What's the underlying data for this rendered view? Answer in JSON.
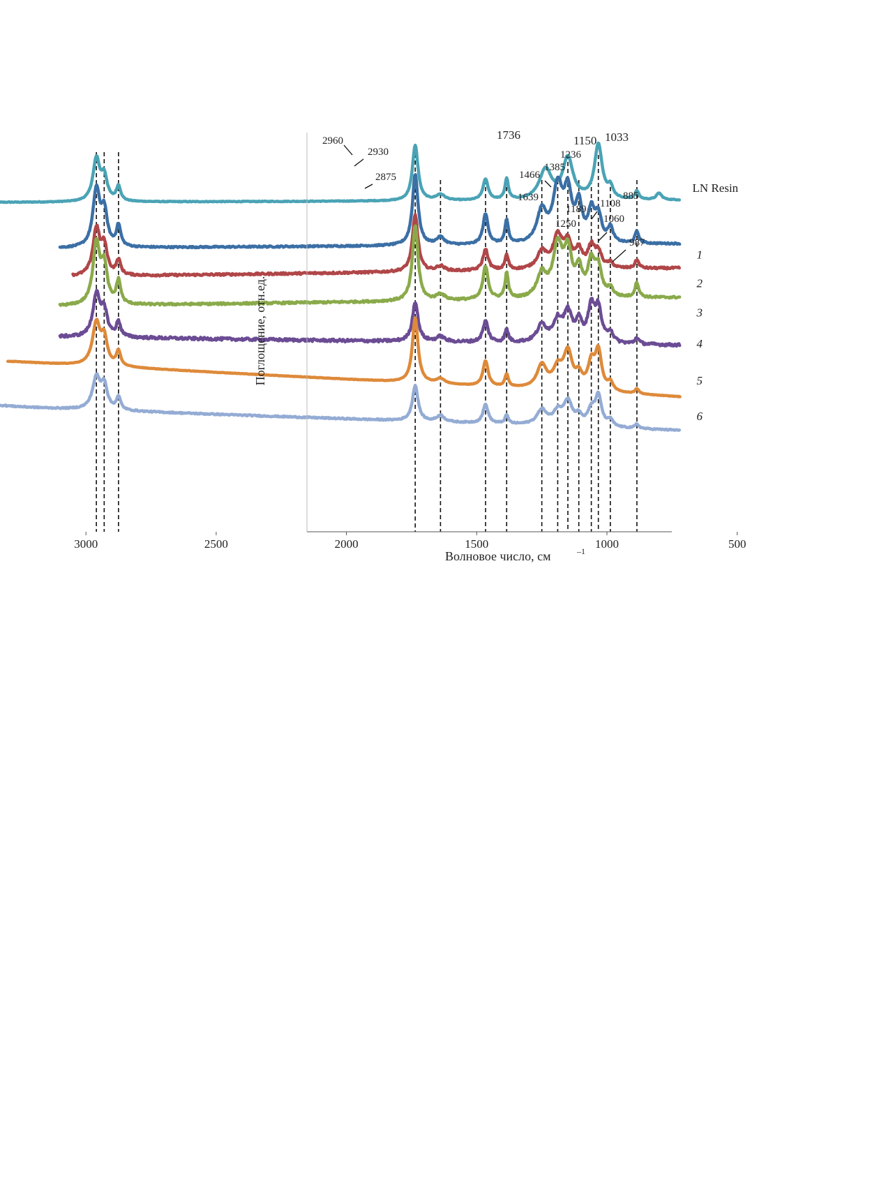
{
  "chart_data": {
    "type": "line",
    "xlabel": "Волновое число, см",
    "xlabel_superscript": "–1",
    "ylabel": "Поглощение, отн.ед.",
    "xlim": [
      3350,
      500
    ],
    "x_reversed": true,
    "x_ticks": [
      3000,
      2500,
      2000,
      1500,
      1000,
      500
    ],
    "grid": false,
    "legend": "labels at right end of each curve",
    "reference_lines": [
      2960,
      2930,
      2875,
      1736,
      1639,
      1466,
      1385,
      1250,
      1189,
      1150,
      1108,
      1060,
      1033,
      987,
      885
    ],
    "peak_labels": [
      {
        "text": "2960",
        "x": 2960,
        "series": "LN Resin"
      },
      {
        "text": "2930",
        "x": 2930,
        "series": "LN Resin"
      },
      {
        "text": "2875",
        "x": 2875,
        "series": "LN Resin"
      },
      {
        "text": "1736",
        "x": 1736,
        "series": "LN Resin"
      },
      {
        "text": "1639",
        "x": 1639,
        "series": "LN Resin"
      },
      {
        "text": "1466",
        "x": 1466,
        "series": "LN Resin"
      },
      {
        "text": "1385",
        "x": 1385,
        "series": "LN Resin"
      },
      {
        "text": "1236",
        "x": 1236,
        "series": "LN Resin"
      },
      {
        "text": "1150",
        "x": 1150,
        "series": "LN Resin"
      },
      {
        "text": "1033",
        "x": 1033,
        "series": "LN Resin"
      },
      {
        "text": "885",
        "x": 885,
        "series": "LN Resin"
      },
      {
        "text": "1250",
        "x": 1250,
        "series": "1"
      },
      {
        "text": "1189",
        "x": 1189,
        "series": "1"
      },
      {
        "text": "1108",
        "x": 1108,
        "series": "1"
      },
      {
        "text": "1060",
        "x": 1060,
        "series": "1"
      },
      {
        "text": "987",
        "x": 987,
        "series": "1"
      }
    ],
    "series": [
      {
        "name": "LN Resin",
        "color": "#4aa3b5",
        "x_range": [
          3350,
          720
        ],
        "baseline": 0.935,
        "noise": 0.15,
        "tilt": [
          0,
          0.05
        ],
        "peaks": [
          [
            2960,
            1.0,
            16
          ],
          [
            2930,
            0.55,
            14
          ],
          [
            2875,
            0.35,
            10
          ],
          [
            1736,
            1.33,
            13
          ],
          [
            1639,
            0.14,
            20
          ],
          [
            1466,
            0.5,
            12
          ],
          [
            1385,
            0.5,
            8
          ],
          [
            1236,
            0.72,
            28
          ],
          [
            1150,
            0.98,
            24
          ],
          [
            1033,
            1.3,
            18
          ],
          [
            987,
            0.25,
            12
          ],
          [
            885,
            0.2,
            9
          ],
          [
            800,
            0.16,
            12
          ]
        ]
      },
      {
        "name": "1",
        "color": "#3b6fa5",
        "x_range": [
          3100,
          720
        ],
        "baseline": 1.9,
        "noise": 0.3,
        "tilt": [
          0,
          0.1
        ],
        "peaks": [
          [
            2960,
            1.35,
            16
          ],
          [
            2930,
            0.8,
            14
          ],
          [
            2875,
            0.5,
            10
          ],
          [
            1736,
            1.7,
            13
          ],
          [
            1639,
            0.18,
            18
          ],
          [
            1466,
            0.72,
            12
          ],
          [
            1385,
            0.55,
            8
          ],
          [
            1250,
            0.75,
            22
          ],
          [
            1189,
            1.3,
            22
          ],
          [
            1150,
            1.1,
            18
          ],
          [
            1108,
            0.85,
            15
          ],
          [
            1060,
            0.7,
            15
          ],
          [
            1033,
            0.6,
            15
          ],
          [
            987,
            0.35,
            12
          ],
          [
            885,
            0.28,
            9
          ]
        ]
      },
      {
        "name": "2",
        "color": "#b04648",
        "x_range": [
          3050,
          720
        ],
        "baseline": 2.5,
        "noise": 0.4,
        "tilt": [
          0,
          0.2
        ],
        "peaks": [
          [
            2960,
            1.1,
            16
          ],
          [
            2930,
            0.65,
            14
          ],
          [
            2875,
            0.35,
            10
          ],
          [
            1736,
            1.35,
            13
          ],
          [
            1639,
            0.12,
            18
          ],
          [
            1466,
            0.5,
            12
          ],
          [
            1385,
            0.35,
            8
          ],
          [
            1250,
            0.4,
            22
          ],
          [
            1189,
            0.75,
            22
          ],
          [
            1150,
            0.55,
            18
          ],
          [
            1108,
            0.4,
            15
          ],
          [
            1060,
            0.5,
            16
          ],
          [
            1033,
            0.35,
            15
          ],
          [
            987,
            0.12,
            12
          ],
          [
            885,
            0.2,
            9
          ]
        ]
      },
      {
        "name": "3",
        "color": "#8aaa4a",
        "x_range": [
          3100,
          720
        ],
        "baseline": 3.12,
        "noise": 0.4,
        "tilt": [
          0,
          0.2
        ],
        "peaks": [
          [
            2960,
            1.45,
            16
          ],
          [
            2930,
            0.85,
            14
          ],
          [
            2875,
            0.55,
            10
          ],
          [
            1736,
            1.8,
            13
          ],
          [
            1639,
            0.15,
            18
          ],
          [
            1466,
            0.8,
            12
          ],
          [
            1385,
            0.6,
            8
          ],
          [
            1250,
            0.55,
            22
          ],
          [
            1189,
            1.2,
            22
          ],
          [
            1150,
            1.0,
            18
          ],
          [
            1108,
            0.6,
            15
          ],
          [
            1060,
            0.8,
            16
          ],
          [
            1033,
            0.65,
            15
          ],
          [
            987,
            0.2,
            12
          ],
          [
            885,
            0.35,
            9
          ]
        ]
      },
      {
        "name": "4",
        "color": "#6b4c94",
        "x_range": [
          3100,
          720
        ],
        "baseline": 3.77,
        "noise": 0.55,
        "tilt": [
          0,
          -0.2
        ],
        "peaks": [
          [
            2960,
            1.0,
            16
          ],
          [
            2930,
            0.6,
            14
          ],
          [
            2875,
            0.35,
            10
          ],
          [
            1736,
            0.95,
            13
          ],
          [
            1639,
            0.12,
            18
          ],
          [
            1466,
            0.5,
            12
          ],
          [
            1385,
            0.3,
            8
          ],
          [
            1250,
            0.4,
            22
          ],
          [
            1189,
            0.5,
            22
          ],
          [
            1150,
            0.65,
            18
          ],
          [
            1108,
            0.45,
            15
          ],
          [
            1060,
            0.8,
            16
          ],
          [
            1033,
            0.75,
            15
          ],
          [
            987,
            0.25,
            12
          ],
          [
            885,
            0.15,
            9
          ]
        ]
      },
      {
        "name": "5",
        "color": "#de8a3a",
        "x_range": [
          3300,
          720
        ],
        "baseline": 4.55,
        "noise": 0.1,
        "tilt": [
          0.3,
          -0.55
        ],
        "peaks": [
          [
            2960,
            1.0,
            18
          ],
          [
            2930,
            0.6,
            14
          ],
          [
            2875,
            0.35,
            10
          ],
          [
            1736,
            1.55,
            13
          ],
          [
            1639,
            0.12,
            18
          ],
          [
            1466,
            0.6,
            12
          ],
          [
            1385,
            0.3,
            8
          ],
          [
            1250,
            0.55,
            22
          ],
          [
            1189,
            0.45,
            22
          ],
          [
            1150,
            0.85,
            20
          ],
          [
            1108,
            0.3,
            15
          ],
          [
            1060,
            0.6,
            16
          ],
          [
            1033,
            0.9,
            15
          ],
          [
            987,
            0.2,
            12
          ],
          [
            885,
            0.12,
            9
          ]
        ]
      },
      {
        "name": "6",
        "color": "#94acd4",
        "x_range": [
          3500,
          720
        ],
        "baseline": 5.3,
        "noise": 0.25,
        "tilt": [
          0.1,
          -0.5
        ],
        "peaks": [
          [
            3400,
            0.05,
            120
          ],
          [
            2960,
            0.75,
            18
          ],
          [
            2930,
            0.55,
            14
          ],
          [
            2875,
            0.3,
            10
          ],
          [
            1736,
            0.85,
            13
          ],
          [
            1639,
            0.15,
            18
          ],
          [
            1466,
            0.45,
            12
          ],
          [
            1385,
            0.2,
            8
          ],
          [
            1250,
            0.35,
            22
          ],
          [
            1189,
            0.3,
            22
          ],
          [
            1150,
            0.55,
            20
          ],
          [
            1108,
            0.2,
            15
          ],
          [
            1060,
            0.35,
            16
          ],
          [
            1033,
            0.7,
            15
          ],
          [
            987,
            0.15,
            12
          ],
          [
            885,
            0.1,
            9
          ]
        ]
      }
    ]
  }
}
